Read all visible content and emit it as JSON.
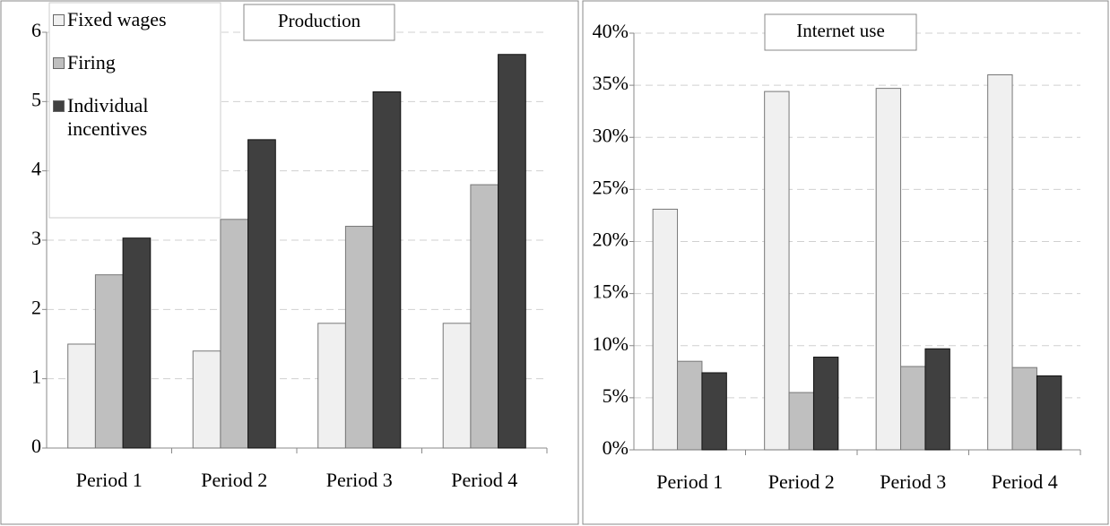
{
  "chart_data": [
    {
      "type": "bar",
      "title": "Production",
      "categories": [
        "Period 1",
        "Period 2",
        "Period 3",
        "Period 4"
      ],
      "series": [
        {
          "name": "Fixed wages",
          "color": "#f0f0f0",
          "values": [
            1.5,
            1.4,
            1.8,
            1.8
          ]
        },
        {
          "name": "Firing",
          "color": "#bfbfbf",
          "values": [
            2.5,
            3.3,
            3.2,
            3.8
          ]
        },
        {
          "name": "Individual incentives",
          "color": "#404040",
          "values": [
            3.03,
            4.45,
            5.14,
            5.68
          ]
        }
      ],
      "ylim": [
        0,
        6
      ],
      "yticks": [
        0,
        1,
        2,
        3,
        4,
        5,
        6
      ],
      "grid": true,
      "legend": "upper left"
    },
    {
      "type": "bar",
      "title": "Internet use",
      "categories": [
        "Period 1",
        "Period 2",
        "Period 3",
        "Period 4"
      ],
      "series": [
        {
          "color": "#f0f0f0",
          "values": [
            23.1,
            34.4,
            34.7,
            36.0
          ]
        },
        {
          "color": "#bfbfbf",
          "values": [
            8.5,
            5.5,
            8.0,
            7.9
          ]
        },
        {
          "color": "#404040",
          "values": [
            7.4,
            8.9,
            9.7,
            7.1
          ]
        }
      ],
      "ylim": [
        0,
        40
      ],
      "yticks": [
        {
          "value": 0,
          "label": "0%"
        },
        {
          "value": 5,
          "label": "5%"
        },
        {
          "value": 10,
          "label": "10%"
        },
        {
          "value": 15,
          "label": "15%"
        },
        {
          "value": 20,
          "label": "20%"
        },
        {
          "value": 25,
          "label": "25%"
        },
        {
          "value": 30,
          "label": "30%"
        },
        {
          "value": 35,
          "label": "35%"
        },
        {
          "value": 40,
          "label": "40%"
        }
      ],
      "grid": true
    }
  ]
}
